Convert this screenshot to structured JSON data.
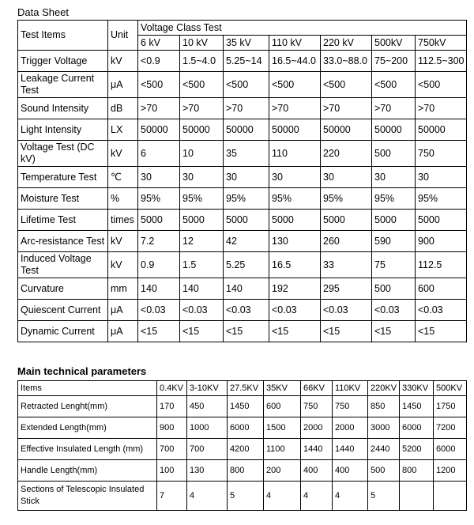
{
  "title": "Data Sheet",
  "data_sheet": {
    "item_header": "Test Items",
    "unit_header": "Unit",
    "group_header": "Voltage Class Test",
    "classes": [
      "6 kV",
      "10 kV",
      "35 kV",
      "110 kV",
      "220 kV",
      "500kV",
      "750kV"
    ],
    "rows": [
      [
        "Trigger Voltage",
        "kV",
        "<0.9",
        "1.5~4.0",
        "5.25~14",
        "16.5~44.0",
        "33.0~88.0",
        "75~200",
        "112.5~300"
      ],
      [
        "Leakage Current Test",
        "μA",
        "<500",
        "<500",
        "<500",
        "<500",
        "<500",
        "<500",
        "<500"
      ],
      [
        "Sound Intensity",
        "dB",
        ">70",
        ">70",
        ">70",
        ">70",
        ">70",
        ">70",
        ">70"
      ],
      [
        "Light Intensity",
        "LX",
        "50000",
        "50000",
        "50000",
        "50000",
        "50000",
        "50000",
        "50000"
      ],
      [
        "Voltage Test (DC kV)",
        "kV",
        "6",
        "10",
        "35",
        "110",
        "220",
        "500",
        "750"
      ],
      [
        "Temperature Test",
        "℃",
        "30",
        "30",
        "30",
        "30",
        "30",
        "30",
        "30"
      ],
      [
        "Moisture Test",
        "%",
        "95%",
        "95%",
        "95%",
        "95%",
        "95%",
        "95%",
        "95%"
      ],
      [
        "Lifetime Test",
        "times",
        "5000",
        "5000",
        "5000",
        "5000",
        "5000",
        "5000",
        "5000"
      ],
      [
        "Arc-resistance Test",
        "kV",
        "7.2",
        "12",
        "42",
        "130",
        "260",
        "590",
        "900"
      ],
      [
        "Induced Voltage Test",
        "kV",
        "0.9",
        "1.5",
        "5.25",
        "16.5",
        "33",
        "75",
        "112.5"
      ],
      [
        "Curvature",
        "mm",
        "140",
        "140",
        "140",
        "192",
        "295",
        "500",
        "600"
      ],
      [
        "Quiescent Current",
        "μA",
        "<0.03",
        "<0.03",
        "<0.03",
        "<0.03",
        "<0.03",
        "<0.03",
        "<0.03"
      ],
      [
        "Dynamic Current",
        "μA",
        "<15",
        "<15",
        "<15",
        "<15",
        "<15",
        "<15",
        "<15"
      ]
    ]
  },
  "main_parameters": {
    "title": "Main technical parameters",
    "header": [
      "Items",
      "0.4KV",
      "3-10KV",
      "27.5KV",
      "35KV",
      "66KV",
      "110KV",
      "220KV",
      "330KV",
      "500KV"
    ],
    "rows": [
      [
        "Retracted Lenght(mm)",
        "170",
        "450",
        "1450",
        "600",
        "750",
        "750",
        "850",
        "1450",
        "1750"
      ],
      [
        "Extended Length(mm)",
        "900",
        "1000",
        "6000",
        "1500",
        "2000",
        "2000",
        "3000",
        "6000",
        "7200"
      ],
      [
        "Effective Insulated Length (mm)",
        "700",
        "700",
        "4200",
        "1100",
        "1440",
        "1440",
        "2440",
        "5200",
        "6000"
      ],
      [
        "Handle Length(mm)",
        "100",
        "130",
        "800",
        "200",
        "400",
        "400",
        "500",
        "800",
        "1200"
      ],
      [
        "Sections of Telescopic Insulated Stick",
        "7",
        "4",
        "5",
        "4",
        "4",
        "4",
        "5",
        null,
        null
      ]
    ]
  }
}
